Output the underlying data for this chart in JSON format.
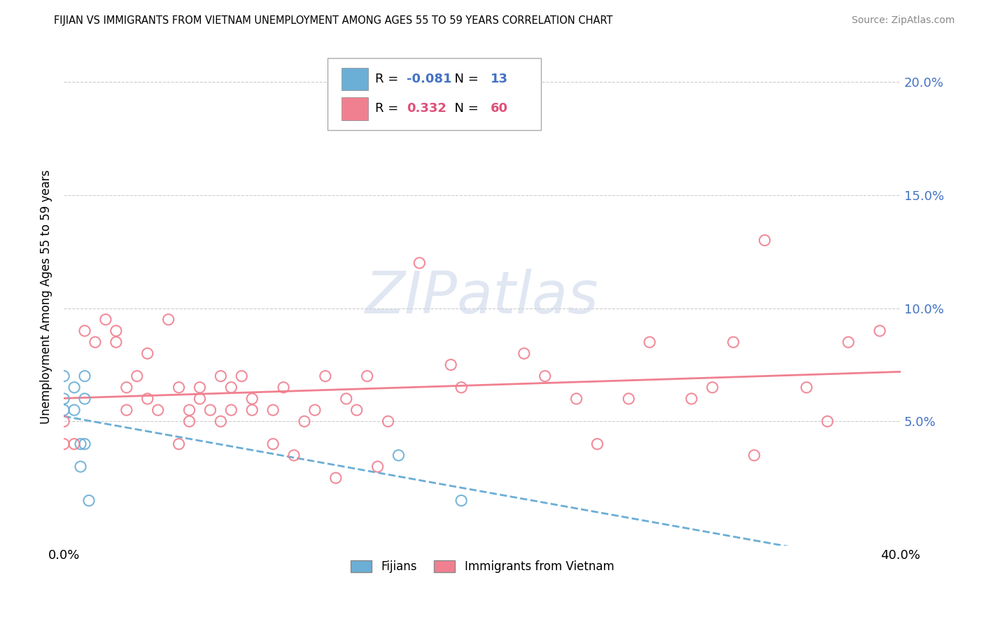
{
  "title": "FIJIAN VS IMMIGRANTS FROM VIETNAM UNEMPLOYMENT AMONG AGES 55 TO 59 YEARS CORRELATION CHART",
  "source": "Source: ZipAtlas.com",
  "ylabel": "Unemployment Among Ages 55 to 59 years",
  "xlim": [
    0.0,
    0.4
  ],
  "ylim": [
    -0.005,
    0.215
  ],
  "ytick_vals": [
    0.05,
    0.1,
    0.15,
    0.2
  ],
  "ytick_labels": [
    "5.0%",
    "10.0%",
    "15.0%",
    "20.0%"
  ],
  "xtick_vals": [
    0.0,
    0.4
  ],
  "xtick_labels": [
    "0.0%",
    "40.0%"
  ],
  "fijian_color": "#6baed6",
  "vietnam_color": "#f08090",
  "fijian_R": -0.081,
  "fijian_N": 13,
  "vietnam_R": 0.332,
  "vietnam_N": 60,
  "fijian_points_x": [
    0.0,
    0.0,
    0.0,
    0.005,
    0.005,
    0.008,
    0.008,
    0.01,
    0.01,
    0.01,
    0.012,
    0.16,
    0.19
  ],
  "fijian_points_y": [
    0.055,
    0.06,
    0.07,
    0.055,
    0.065,
    0.03,
    0.04,
    0.04,
    0.06,
    0.07,
    0.015,
    0.035,
    0.015
  ],
  "vietnam_points_x": [
    0.0,
    0.0,
    0.005,
    0.01,
    0.015,
    0.02,
    0.025,
    0.025,
    0.03,
    0.03,
    0.035,
    0.04,
    0.04,
    0.045,
    0.05,
    0.055,
    0.055,
    0.06,
    0.06,
    0.065,
    0.065,
    0.07,
    0.075,
    0.075,
    0.08,
    0.08,
    0.085,
    0.09,
    0.09,
    0.1,
    0.1,
    0.105,
    0.11,
    0.115,
    0.12,
    0.125,
    0.13,
    0.135,
    0.14,
    0.145,
    0.15,
    0.155,
    0.17,
    0.185,
    0.19,
    0.22,
    0.23,
    0.245,
    0.255,
    0.27,
    0.28,
    0.3,
    0.31,
    0.32,
    0.33,
    0.335,
    0.355,
    0.365,
    0.375,
    0.39
  ],
  "vietnam_points_y": [
    0.04,
    0.05,
    0.04,
    0.09,
    0.085,
    0.095,
    0.085,
    0.09,
    0.055,
    0.065,
    0.07,
    0.06,
    0.08,
    0.055,
    0.095,
    0.065,
    0.04,
    0.05,
    0.055,
    0.065,
    0.06,
    0.055,
    0.07,
    0.05,
    0.065,
    0.055,
    0.07,
    0.055,
    0.06,
    0.04,
    0.055,
    0.065,
    0.035,
    0.05,
    0.055,
    0.07,
    0.025,
    0.06,
    0.055,
    0.07,
    0.03,
    0.05,
    0.12,
    0.075,
    0.065,
    0.08,
    0.07,
    0.06,
    0.04,
    0.06,
    0.085,
    0.06,
    0.065,
    0.085,
    0.035,
    0.13,
    0.065,
    0.05,
    0.085,
    0.09
  ],
  "watermark_text": "ZIPatlas",
  "background_color": "#ffffff",
  "grid_color": "#cccccc",
  "right_tick_color": "#4472c4"
}
